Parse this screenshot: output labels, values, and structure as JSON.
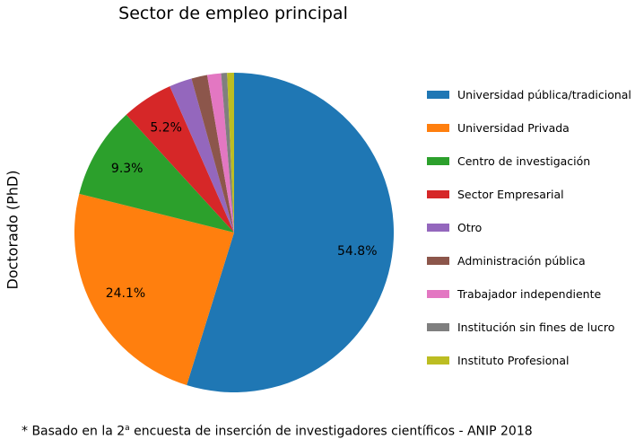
{
  "chart_data": {
    "type": "pie",
    "title": "Sector de empleo principal",
    "ylabel": "Doctorado (PhD)",
    "categories": [
      "Universidad pública/tradicional",
      "Universidad Privada",
      "Centro de investigación",
      "Sector Empresarial",
      "Otro",
      "Administración pública",
      "Trabajador independiente",
      "Institución sin fines de lucro",
      "Instituto Profesional"
    ],
    "values": [
      54.8,
      24.1,
      9.3,
      5.2,
      2.3,
      1.6,
      1.4,
      0.6,
      0.7
    ],
    "value_labels": [
      "54.8%",
      "24.1%",
      "9.3%",
      "5.2%",
      "",
      "",
      "",
      "",
      ""
    ],
    "colors": [
      "#1f77b4",
      "#ff7f0e",
      "#2ca02c",
      "#d62728",
      "#9467bd",
      "#8c564b",
      "#e377c2",
      "#7f7f7f",
      "#bcbd22"
    ],
    "start_angle": "top",
    "direction": "clockwise",
    "legend_position": "right"
  },
  "footnote": {
    "prefix": "* Basado en la 2",
    "superscript": "a",
    "suffix": " encuesta de inserción de investigadores científicos - ANIP 2018"
  }
}
